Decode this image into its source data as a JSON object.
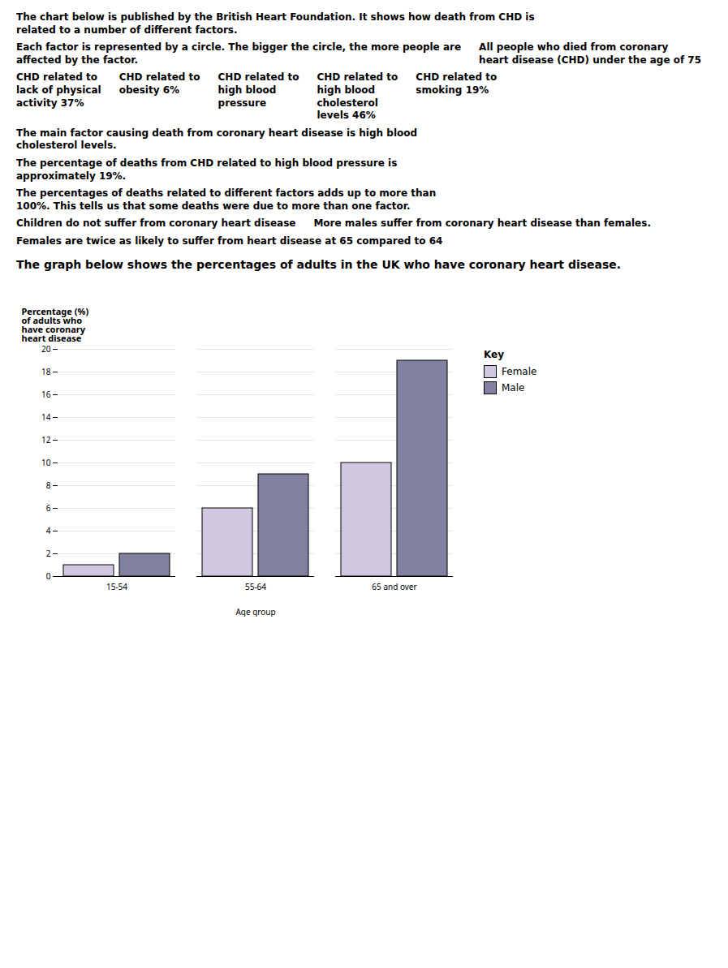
{
  "chart_data": {
    "type": "bar",
    "title": "The graph below shows the percentages of adults in the UK who have coronary heart disease.",
    "annotations": [
      "The chart below is published by the British Heart Foundation. It shows how death from CHD is\nrelated to a number of different factors.",
      "Each factor is represented by a circle. The bigger the circle, the more people are\naffected by the factor.",
      "All people who died from coronary\nheart disease (CHD) under the age of 75",
      "CHD related to\nlack of physical\nactivity 37%",
      "CHD related to\nobesity 6%",
      "CHD related to\nhigh blood\npressure",
      "CHD related to\nhigh blood\ncholesterol\nlevels 46%",
      "CHD related to\nsmoking 19%",
      "The main factor causing death from coronary heart disease is high blood\ncholesterol levels.",
      "The percentage of deaths from CHD related to high blood pressure is\napproximately 19%.",
      "The percentages of deaths related to different factors adds up to more than\n100%. This tells us that some deaths were due to more than one factor.",
      "Children do not suffer from coronary heart disease",
      "More males suffer from coronary heart disease than females.",
      "Females are twice as likely to suffer from heart disease at 65 compared to 64"
    ],
    "categories": [
      "15-54",
      "55-64",
      "65 and over"
    ],
    "series": [
      {
        "name": "Female",
        "color": "#d0c8e0",
        "values": [
          1,
          6,
          10
        ]
      },
      {
        "name": "Male",
        "color": "#8080a0",
        "values": [
          2,
          9,
          19
        ]
      }
    ],
    "xlabel": "Age group",
    "ylabel": "Percentage (%)\nof adults who\nhave coronary\nheart disease",
    "ylim": [
      0,
      20
    ],
    "yticks": [
      0,
      2,
      4,
      6,
      8,
      10,
      12,
      14,
      16,
      18,
      20
    ],
    "grid": true,
    "legend": "right",
    "legend_title": "Key"
  }
}
